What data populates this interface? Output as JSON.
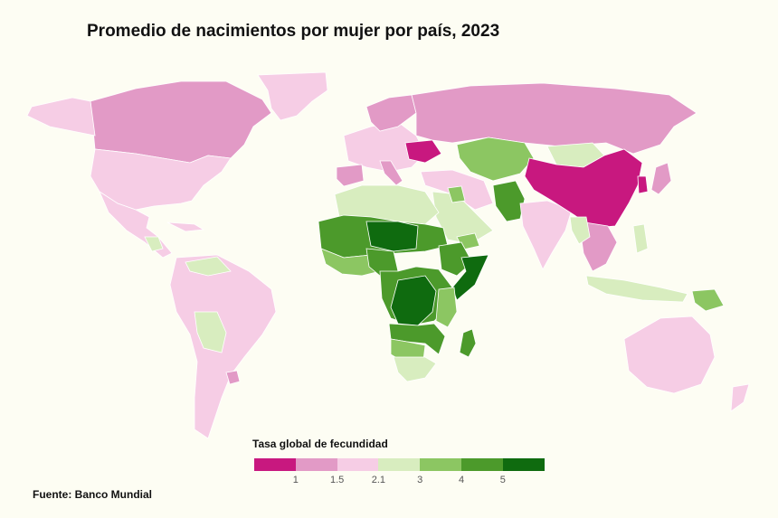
{
  "title": "Promedio de nacimientos por mujer por país, 2023",
  "legend": {
    "title": "Tasa global de fecundidad",
    "ticks": [
      "1",
      "1.5",
      "2.1",
      "3",
      "4",
      "5"
    ],
    "colors": [
      "#c8187f",
      "#e29ac6",
      "#f6cde5",
      "#d8edbf",
      "#8cc662",
      "#4c9a2b",
      "#0f6b0f"
    ]
  },
  "source": "Fuente: Banco Mundial",
  "colors": {
    "ocean_background": "#fdfdf3",
    "no_data": "#d9d9d9"
  }
}
